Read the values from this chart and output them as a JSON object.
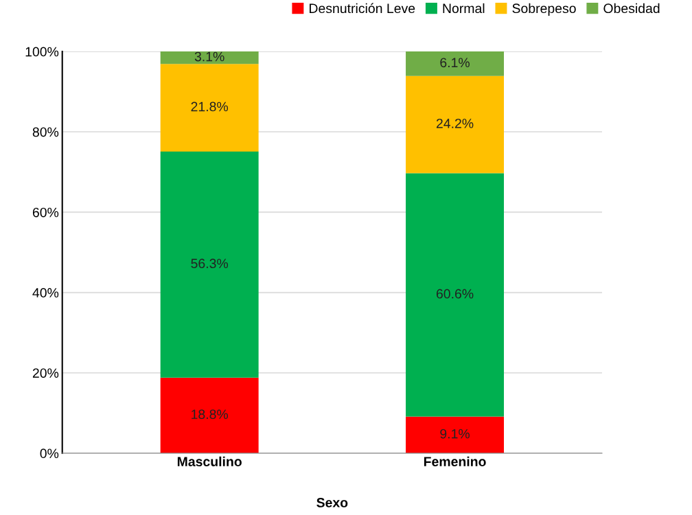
{
  "chart_data": {
    "type": "bar",
    "stacked": true,
    "xlabel": "Sexo",
    "categories": [
      "Masculino",
      "Femenino"
    ],
    "series": [
      {
        "name": "Desnutrición Leve",
        "color": "#ff0000",
        "values": [
          18.8,
          9.1
        ],
        "value_labels": [
          "18.8%",
          "9.1%"
        ]
      },
      {
        "name": "Normal",
        "color": "#00b050",
        "values": [
          56.3,
          60.6
        ],
        "value_labels": [
          "56.3%",
          "60.6%"
        ]
      },
      {
        "name": "Sobrepeso",
        "color": "#ffc000",
        "values": [
          21.8,
          24.2
        ],
        "value_labels": [
          "21.8%",
          "24.2%"
        ]
      },
      {
        "name": "Obesidad",
        "color": "#70ad47",
        "values": [
          3.1,
          6.1
        ],
        "value_labels": [
          "3.1%",
          "6.1%"
        ]
      }
    ],
    "ylim": [
      0,
      100
    ],
    "yticks": [
      {
        "value": 0,
        "label": "0%"
      },
      {
        "value": 20,
        "label": "20%"
      },
      {
        "value": 40,
        "label": "40%"
      },
      {
        "value": 60,
        "label": "60%"
      },
      {
        "value": 80,
        "label": "80%"
      },
      {
        "value": 100,
        "label": "100%"
      }
    ],
    "grid": "y",
    "legend": "top right"
  }
}
